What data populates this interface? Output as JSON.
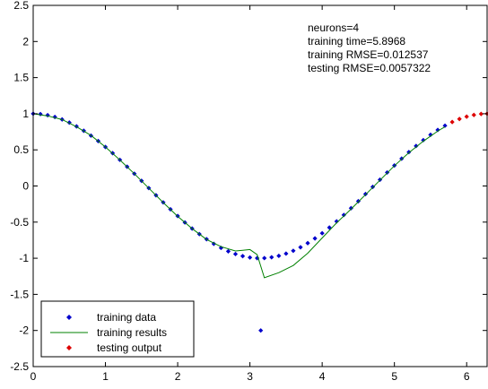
{
  "chart_data": {
    "type": "line",
    "title": "",
    "xlabel": "",
    "ylabel": "",
    "xlim": [
      0,
      6.283
    ],
    "ylim": [
      -2.5,
      2.5
    ],
    "grid": false,
    "legend_position": "bottom-left",
    "xticks": [
      "0",
      "1",
      "2",
      "3",
      "4",
      "5",
      "6"
    ],
    "yticks": [
      "2.5",
      "2",
      "1.5",
      "1",
      "0.5",
      "0",
      "-0.5",
      "-1",
      "-1.5",
      "-2",
      "-2.5"
    ],
    "annotations": [
      "neurons=4",
      "training time=5.8968",
      "training RMSE=0.012537",
      "testing RMSE=0.0057322"
    ],
    "series": [
      {
        "name": "training data",
        "style": "markers",
        "color": "#0000cc",
        "x": [
          0,
          0.1,
          0.2,
          0.3,
          0.4,
          0.5,
          0.6,
          0.7,
          0.8,
          0.9,
          1.0,
          1.1,
          1.2,
          1.3,
          1.4,
          1.5,
          1.6,
          1.7,
          1.8,
          1.9,
          2.0,
          2.1,
          2.2,
          2.3,
          2.4,
          2.5,
          2.6,
          2.7,
          2.8,
          2.9,
          3.0,
          3.1,
          3.15,
          3.2,
          3.3,
          3.4,
          3.5,
          3.6,
          3.7,
          3.8,
          3.9,
          4.0,
          4.1,
          4.2,
          4.3,
          4.4,
          4.5,
          4.6,
          4.7,
          4.8,
          4.9,
          5.0,
          5.1,
          5.2,
          5.3,
          5.4,
          5.5,
          5.6,
          5.7
        ],
        "y": [
          1.0,
          0.995,
          0.98,
          0.955,
          0.921,
          0.878,
          0.825,
          0.765,
          0.697,
          0.622,
          0.54,
          0.454,
          0.362,
          0.267,
          0.17,
          0.071,
          -0.029,
          -0.129,
          -0.227,
          -0.323,
          -0.416,
          -0.505,
          -0.589,
          -0.666,
          -0.737,
          -0.801,
          -0.857,
          -0.904,
          -0.942,
          -0.971,
          -0.99,
          -0.999,
          -2.0,
          -0.998,
          -0.987,
          -0.967,
          -0.936,
          -0.897,
          -0.848,
          -0.791,
          -0.726,
          -0.654,
          -0.575,
          -0.49,
          -0.401,
          -0.307,
          -0.211,
          -0.112,
          -0.012,
          0.087,
          0.187,
          0.284,
          0.378,
          0.469,
          0.554,
          0.635,
          0.709,
          0.776,
          0.835
        ]
      },
      {
        "name": "training results",
        "style": "line",
        "color": "#008000",
        "x": [
          0,
          0.2,
          0.4,
          0.6,
          0.8,
          1.0,
          1.2,
          1.4,
          1.6,
          1.8,
          2.0,
          2.2,
          2.4,
          2.6,
          2.8,
          2.9,
          3.0,
          3.1,
          3.2,
          3.4,
          3.6,
          3.8,
          4.0,
          4.2,
          4.4,
          4.6,
          4.8,
          5.0,
          5.2,
          5.4,
          5.6,
          5.7
        ],
        "y": [
          1.0,
          0.97,
          0.92,
          0.82,
          0.7,
          0.54,
          0.36,
          0.17,
          -0.03,
          -0.23,
          -0.42,
          -0.59,
          -0.74,
          -0.84,
          -0.9,
          -0.89,
          -0.88,
          -0.95,
          -1.27,
          -1.2,
          -1.1,
          -0.93,
          -0.72,
          -0.51,
          -0.32,
          -0.12,
          0.08,
          0.28,
          0.46,
          0.62,
          0.76,
          0.82
        ]
      },
      {
        "name": "testing output",
        "style": "markers",
        "color": "#dd0000",
        "x": [
          5.8,
          5.9,
          6.0,
          6.1,
          6.2,
          6.283
        ],
        "y": [
          0.886,
          0.927,
          0.96,
          0.983,
          0.997,
          1.0
        ]
      }
    ]
  }
}
